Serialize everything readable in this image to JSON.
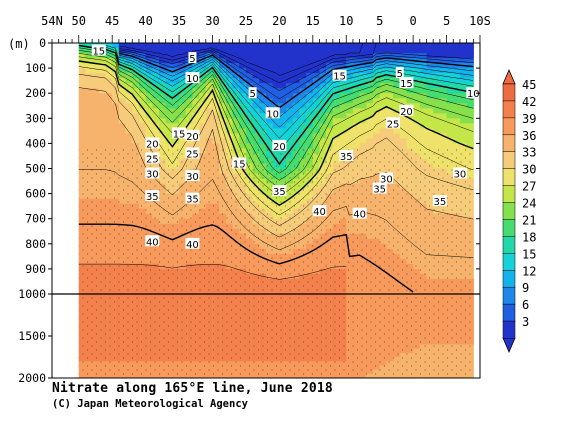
{
  "chart_data": {
    "type": "heatmap",
    "title": "Nitrate along 165°E line, June 2018",
    "credit": "(C) Japan Meteorological Agency",
    "ylabel": "(m)",
    "x_ticks": [
      "54N",
      "50",
      "45",
      "40",
      "35",
      "30",
      "25",
      "20",
      "15",
      "10",
      "5",
      "0",
      "5",
      "10S"
    ],
    "x_tick_values": [
      54,
      50,
      45,
      40,
      35,
      30,
      25,
      20,
      15,
      10,
      5,
      0,
      -5,
      -10
    ],
    "xlim": [
      54,
      -10
    ],
    "y_ticks_upper": [
      "0",
      "100",
      "200",
      "300",
      "400",
      "500",
      "600",
      "700",
      "800",
      "900",
      "1000"
    ],
    "y_tick_values_upper": [
      0,
      100,
      200,
      300,
      400,
      500,
      600,
      700,
      800,
      900,
      1000
    ],
    "y_ticks_lower": [
      "1500",
      "2000"
    ],
    "y_tick_values_lower": [
      1500,
      2000
    ],
    "ylim": [
      0,
      2000
    ],
    "y_break": 1000,
    "colorbar": {
      "levels": [
        3,
        6,
        9,
        12,
        15,
        18,
        21,
        24,
        27,
        30,
        33,
        36,
        39,
        42,
        45
      ],
      "labels": [
        "45",
        "42",
        "39",
        "36",
        "33",
        "30",
        "27",
        "24",
        "21",
        "18",
        "15",
        "12",
        "9",
        "6",
        "3"
      ],
      "colors": [
        "#2233cc",
        "#1f5fe0",
        "#1e88e8",
        "#13b4ec",
        "#14d2d8",
        "#20d8a8",
        "#46dc70",
        "#86e04c",
        "#c4e648",
        "#eee26a",
        "#f6cc7a",
        "#f7b36c",
        "#f79a5c",
        "#f4814c",
        "#ee6a40"
      ]
    },
    "contour_labels": [
      {
        "text": "15",
        "lat": 47,
        "depth": 30
      },
      {
        "text": "5",
        "lat": 33,
        "depth": 60
      },
      {
        "text": "10",
        "lat": 33,
        "depth": 140
      },
      {
        "text": "15",
        "lat": 11,
        "depth": 130
      },
      {
        "text": "5",
        "lat": 2,
        "depth": 120
      },
      {
        "text": "15",
        "lat": 1,
        "depth": 160
      },
      {
        "text": "10",
        "lat": -9,
        "depth": 200
      },
      {
        "text": "5",
        "lat": 24,
        "depth": 200
      },
      {
        "text": "10",
        "lat": 21,
        "depth": 280
      },
      {
        "text": "20",
        "lat": 1,
        "depth": 270
      },
      {
        "text": "25",
        "lat": 3,
        "depth": 320
      },
      {
        "text": "20",
        "lat": 39,
        "depth": 400
      },
      {
        "text": "15",
        "lat": 35,
        "depth": 360
      },
      {
        "text": "20",
        "lat": 33,
        "depth": 370
      },
      {
        "text": "20",
        "lat": 20,
        "depth": 410
      },
      {
        "text": "25",
        "lat": 39,
        "depth": 460
      },
      {
        "text": "25",
        "lat": 33,
        "depth": 440
      },
      {
        "text": "15",
        "lat": 26,
        "depth": 480
      },
      {
        "text": "35",
        "lat": 10,
        "depth": 450
      },
      {
        "text": "30",
        "lat": 39,
        "depth": 520
      },
      {
        "text": "30",
        "lat": 33,
        "depth": 530
      },
      {
        "text": "30",
        "lat": 4,
        "depth": 540
      },
      {
        "text": "35",
        "lat": 5,
        "depth": 580
      },
      {
        "text": "30",
        "lat": -7,
        "depth": 520
      },
      {
        "text": "35",
        "lat": 39,
        "depth": 610
      },
      {
        "text": "35",
        "lat": 33,
        "depth": 620
      },
      {
        "text": "35",
        "lat": 20,
        "depth": 590
      },
      {
        "text": "35",
        "lat": -4,
        "depth": 630
      },
      {
        "text": "40",
        "lat": 14,
        "depth": 670
      },
      {
        "text": "40",
        "lat": 8,
        "depth": 680
      },
      {
        "text": "40",
        "lat": 39,
        "depth": 790
      },
      {
        "text": "40",
        "lat": 33,
        "depth": 800
      }
    ]
  }
}
